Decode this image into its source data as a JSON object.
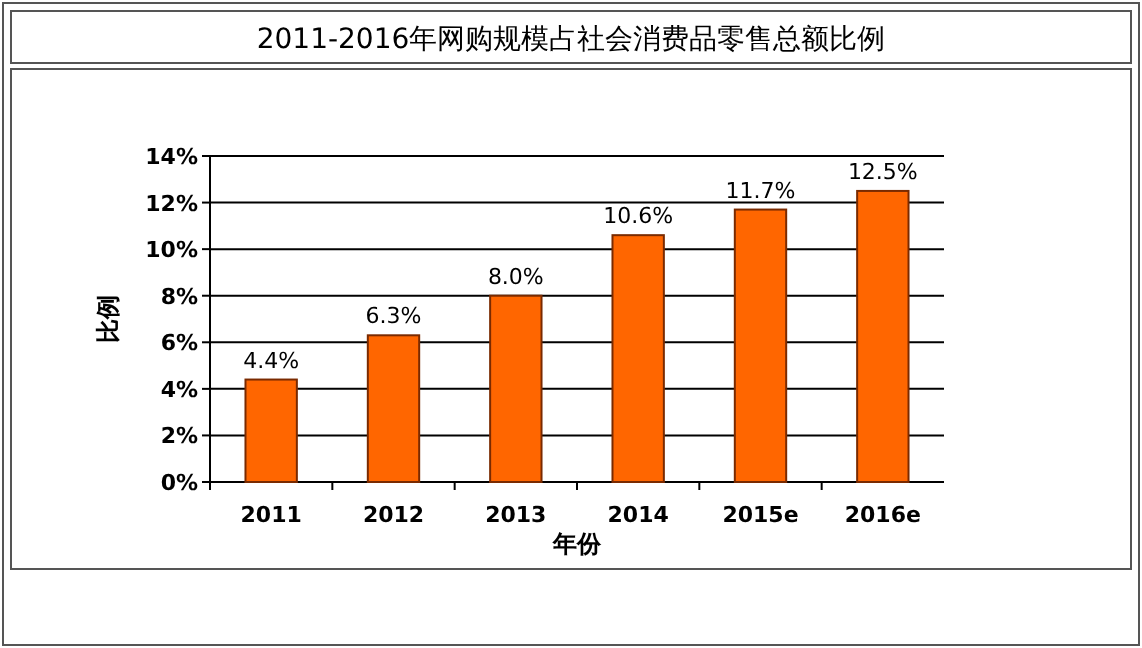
{
  "chart_data": {
    "type": "bar",
    "title": "2011-2016年网购规模占社会消费品零售总额比例",
    "xlabel": "年份",
    "ylabel": "比例",
    "categories": [
      "2011",
      "2012",
      "2013",
      "2014",
      "2015e",
      "2016e"
    ],
    "values": [
      4.4,
      6.3,
      8.0,
      10.6,
      11.7,
      12.5
    ],
    "value_labels": [
      "4.4%",
      "6.3%",
      "8.0%",
      "10.6%",
      "11.7%",
      "12.5%"
    ],
    "color": "#ff6600",
    "ylim": [
      0,
      14
    ],
    "yticks": [
      {
        "value": 0,
        "label": "0%"
      },
      {
        "value": 2,
        "label": "2%"
      },
      {
        "value": 4,
        "label": "4%"
      },
      {
        "value": 6,
        "label": "6%"
      },
      {
        "value": 8,
        "label": "8%"
      },
      {
        "value": 10,
        "label": "10%"
      },
      {
        "value": 12,
        "label": "12%"
      },
      {
        "value": 14,
        "label": "14%"
      }
    ],
    "grid": "y"
  }
}
